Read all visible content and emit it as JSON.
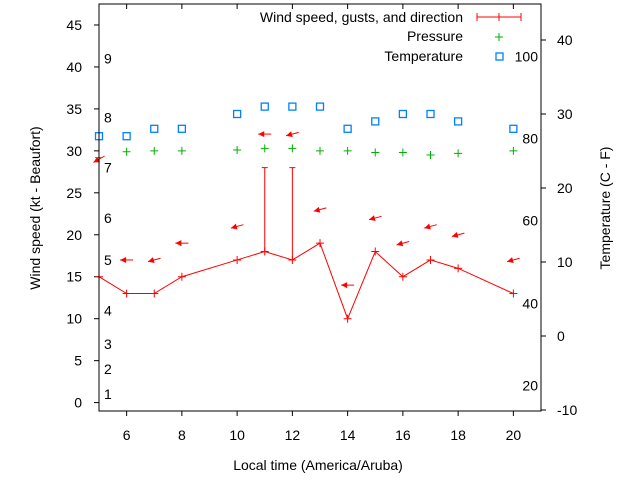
{
  "chart_data": {
    "type": "line",
    "xlabel": "Local time (America/Aruba)",
    "ylabel": "Wind speed (kt - Beaufort)",
    "y2label": "Temperature (C - F)",
    "xlim": [
      5,
      21
    ],
    "ylim": [
      -1,
      47.5
    ],
    "y2lim": [
      -10,
      45
    ],
    "x_ticks": [
      6,
      8,
      10,
      12,
      14,
      16,
      18,
      20
    ],
    "y_ticks": [
      0,
      5,
      10,
      15,
      20,
      25,
      30,
      35,
      40,
      45
    ],
    "y2_ticks": [
      -10,
      0,
      10,
      20,
      30,
      40
    ],
    "beaufort_labels": [
      {
        "label": "1",
        "kt": 1
      },
      {
        "label": "2",
        "kt": 4
      },
      {
        "label": "3",
        "kt": 7
      },
      {
        "label": "4",
        "kt": 11
      },
      {
        "label": "5",
        "kt": 17
      },
      {
        "label": "6",
        "kt": 22
      },
      {
        "label": "7",
        "kt": 28
      },
      {
        "label": "8",
        "kt": 34
      },
      {
        "label": "9",
        "kt": 41
      }
    ],
    "fahrenheit_labels": [
      {
        "label": "20",
        "c": -6.7
      },
      {
        "label": "40",
        "c": 4.4
      },
      {
        "label": "60",
        "c": 15.6
      },
      {
        "label": "80",
        "c": 26.7
      },
      {
        "label": "100",
        "c": 37.8
      }
    ],
    "legend": {
      "placement": "top-right",
      "entries": [
        "Wind speed, gusts, and direction",
        "Pressure",
        "Temperature"
      ]
    },
    "colors": {
      "wind": "#ff0000",
      "pressure": "#00b000",
      "temperature": "#0080ff"
    },
    "series": [
      {
        "name": "Wind speed, gusts, and direction",
        "x": [
          5,
          6,
          7,
          8,
          10,
          11,
          12,
          13,
          14,
          15,
          16,
          17,
          18,
          20
        ],
        "values": [
          15,
          13,
          13,
          15,
          17,
          18,
          17,
          19,
          10,
          18,
          15,
          17,
          16,
          13
        ],
        "gusts": [
          null,
          null,
          null,
          null,
          null,
          28,
          28,
          null,
          null,
          null,
          null,
          null,
          null,
          null
        ],
        "direction_deg": [
          60,
          90,
          75,
          90,
          75,
          90,
          75,
          75,
          90,
          75,
          75,
          75,
          75,
          75
        ],
        "arrow_y": [
          29,
          17,
          17,
          19,
          21,
          32,
          32,
          23,
          14,
          22,
          19,
          21,
          20,
          17
        ]
      },
      {
        "name": "Pressure",
        "x": [
          5,
          6,
          7,
          8,
          10,
          11,
          12,
          13,
          14,
          15,
          16,
          17,
          18,
          20
        ],
        "values": [
          29.2,
          29.9,
          30,
          30,
          30.1,
          30.3,
          30.3,
          30,
          30,
          29.8,
          29.8,
          29.5,
          29.7,
          30
        ]
      },
      {
        "name": "Temperature",
        "axis": "y2",
        "x": [
          5,
          6,
          7,
          8,
          10,
          11,
          12,
          13,
          14,
          15,
          16,
          17,
          18,
          20
        ],
        "values": [
          27,
          27,
          28,
          28,
          30,
          31,
          31,
          31,
          28,
          29,
          30,
          30,
          29,
          28
        ]
      }
    ]
  }
}
